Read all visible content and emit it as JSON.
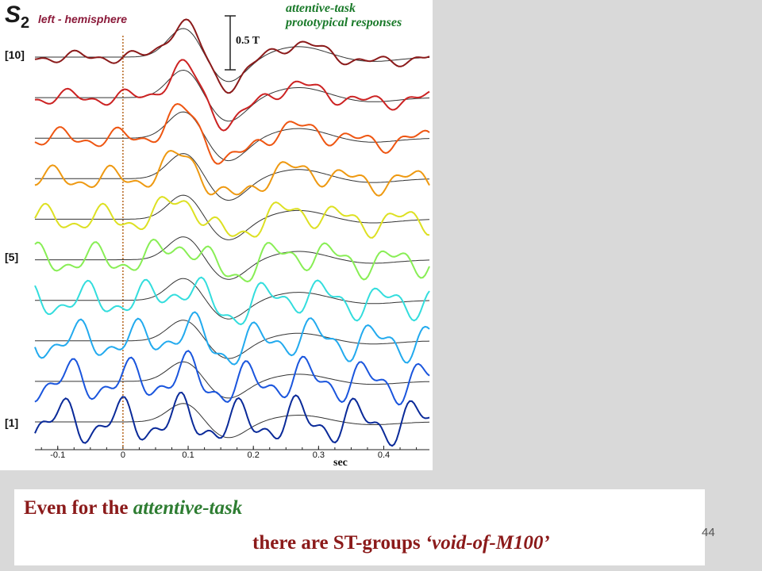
{
  "header": {
    "subject_letter": "S",
    "subject_number": "2",
    "hemisphere": "left - hemisphere",
    "task_line1": "attentive-task",
    "task_line2": "prototypical responses",
    "scale_bar": "0.5 T"
  },
  "caption": {
    "line1_prefix": "Even for the ",
    "line1_emph": "attentive-task",
    "line2_prefix": "there are ST-groups ",
    "line2_emph": "‘void-of-M100’"
  },
  "page_number": "44",
  "chart_data": {
    "type": "line",
    "title": "",
    "xlabel": "sec",
    "ylabel": "",
    "xlim": [
      -0.135,
      0.47
    ],
    "x_ticks": [
      "-0.1",
      "0",
      "0.1",
      "0.2",
      "0.3",
      "0.4"
    ],
    "x_tick_values": [
      -0.1,
      0,
      0.1,
      0.2,
      0.3,
      0.4
    ],
    "stimulus_onset_line": 0,
    "channel_labels": [
      {
        "label": "[10]",
        "channel": 10
      },
      {
        "label": "[5]",
        "channel": 5
      },
      {
        "label": "[1]",
        "channel": 1
      }
    ],
    "prototype_color": "#333333",
    "series": [
      {
        "channel": 10,
        "color": "#8b1a1a"
      },
      {
        "channel": 9,
        "color": "#cc2222"
      },
      {
        "channel": 8,
        "color": "#ee5511"
      },
      {
        "channel": 7,
        "color": "#ee9911"
      },
      {
        "channel": 6,
        "color": "#dde022"
      },
      {
        "channel": 5,
        "color": "#88ee55"
      },
      {
        "channel": 4,
        "color": "#33dddd"
      },
      {
        "channel": 3,
        "color": "#22aaee"
      },
      {
        "channel": 2,
        "color": "#1a55dd"
      },
      {
        "channel": 1,
        "color": "#0a2a99"
      }
    ]
  }
}
